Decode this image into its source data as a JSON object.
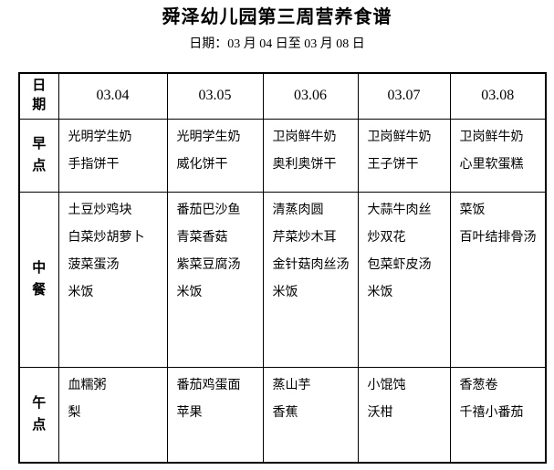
{
  "page": {
    "title": "舜泽幼儿园第三周营养食谱",
    "subtitle": "日期：03 月 04 日至 03 月 08 日"
  },
  "colors": {
    "text": "#000000",
    "border": "#000000",
    "background": "#ffffff"
  },
  "table": {
    "corner_label": "日期",
    "date_columns": [
      "03.04",
      "03.05",
      "03.06",
      "03.07",
      "03.08"
    ],
    "meal_rows": [
      {
        "label": "早点",
        "cells": [
          [
            "光明学生奶",
            "手指饼干"
          ],
          [
            "光明学生奶",
            "威化饼干"
          ],
          [
            "卫岗鲜牛奶",
            "奥利奥饼干"
          ],
          [
            "卫岗鲜牛奶",
            "王子饼干"
          ],
          [
            "卫岗鲜牛奶",
            "心里软蛋糕"
          ]
        ]
      },
      {
        "label": "中餐",
        "cells": [
          [
            "土豆炒鸡块",
            "白菜炒胡萝卜",
            "菠菜蛋汤",
            "米饭"
          ],
          [
            "番茄巴沙鱼",
            "青菜香菇",
            "紫菜豆腐汤",
            "米饭"
          ],
          [
            "清蒸肉圆",
            "芹菜炒木耳",
            "金针菇肉丝汤",
            "米饭"
          ],
          [
            "大蒜牛肉丝",
            "炒双花",
            "包菜虾皮汤",
            "米饭"
          ],
          [
            "菜饭",
            "百叶结排骨汤"
          ]
        ]
      },
      {
        "label": "午点",
        "cells": [
          [
            "血糯粥",
            "梨"
          ],
          [
            "番茄鸡蛋面",
            "苹果"
          ],
          [
            "蒸山芋",
            "香蕉"
          ],
          [
            "小馄饨",
            "沃柑"
          ],
          [
            "香葱卷",
            "千禧小番茄"
          ]
        ]
      }
    ]
  }
}
